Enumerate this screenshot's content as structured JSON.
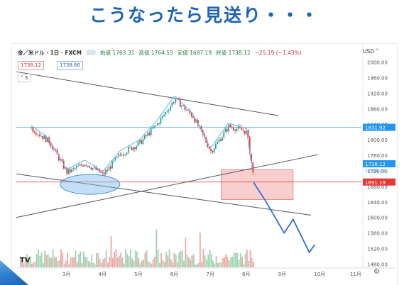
{
  "headline": "こうなったら見送り・・・",
  "toolbar": {
    "symbol": "金／米ドル · 1日 · FXCM",
    "open": "始値 1763.31",
    "high": "高値 1764.55",
    "low": "安値 1687.19",
    "close": "終値 1738.12",
    "change": "−25.19 (−1.43%)"
  },
  "price_boxes": {
    "bid": "1738.12",
    "ask": "1738.66"
  },
  "indicator_toggle": "˅ 3",
  "currency_select": "USD ˅",
  "logo": "TV",
  "chart_data": {
    "type": "candlestick",
    "x_axis_ticks": [
      "3月",
      "4月",
      "5月",
      "6月",
      "7月",
      "8月",
      "9月",
      "10月",
      "11月"
    ],
    "y_axis_ticks": [
      2000,
      1960,
      1920,
      1880,
      1840,
      1800,
      1760,
      1720,
      1680,
      1640,
      1600,
      1560,
      1520,
      1480
    ],
    "ylim": [
      1470,
      2010
    ],
    "price_series_months": [
      2,
      2.5,
      3,
      3.5,
      4,
      4.5,
      5,
      5.5,
      6,
      6.5,
      7,
      7.5,
      8,
      8.2
    ],
    "price_series_values": [
      1830,
      1795,
      1715,
      1740,
      1710,
      1765,
      1790,
      1840,
      1905,
      1860,
      1770,
      1835,
      1820,
      1690
    ],
    "price_labels": [
      {
        "value": 1831.92,
        "text": "1831.92",
        "color": "#2196f3"
      },
      {
        "value": 1738.12,
        "text": "1738.12",
        "color": "#2196f3"
      },
      {
        "value": 1691.19,
        "text": "1691.19",
        "color": "#e53935"
      }
    ],
    "countdown_text": "17:08:41",
    "horizontal_lines": [
      {
        "value": 1831.92,
        "color": "#4aa3df"
      },
      {
        "value": 1691.19,
        "color": "#e53935"
      }
    ],
    "annotation_zone": {
      "month_start": 7.3,
      "month_end": 9.3,
      "top": 1723,
      "bottom": 1646,
      "color": "#f4a6a6"
    },
    "forecast_path_months": [
      8.2,
      8.55,
      8.75,
      9.05,
      9.3,
      9.75,
      9.9
    ],
    "forecast_path_values": [
      1690,
      1640,
      1608,
      1560,
      1595,
      1510,
      1530
    ]
  }
}
